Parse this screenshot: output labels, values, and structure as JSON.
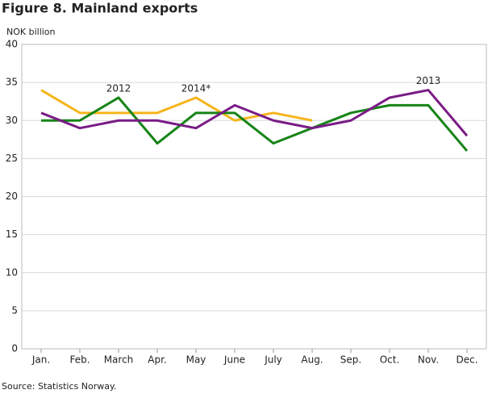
{
  "chart_data": {
    "type": "line",
    "title": "Figure 8. Mainland exports",
    "y_label": "NOK billion",
    "source": "Source: Statistics Norway.",
    "categories": [
      "Jan.",
      "Feb.",
      "March",
      "Apr.",
      "May",
      "June",
      "July",
      "Aug.",
      "Sep.",
      "Oct.",
      "Nov.",
      "Dec."
    ],
    "series": [
      {
        "name": "2014*",
        "color": "#f6b51c",
        "values": [
          34,
          31,
          31,
          31,
          33,
          30,
          31,
          30,
          null,
          null,
          null,
          null
        ]
      },
      {
        "name": "2012",
        "color": "#168416",
        "values": [
          30,
          30,
          33,
          27,
          31,
          31,
          27,
          29,
          31,
          32,
          32,
          26
        ]
      },
      {
        "name": "2013",
        "color": "#7a1c86",
        "values": [
          31,
          29,
          30,
          30,
          29,
          32,
          30,
          29,
          30,
          33,
          34,
          28
        ]
      }
    ],
    "ylim": [
      0,
      40
    ],
    "yticks": [
      0,
      5,
      10,
      15,
      20,
      25,
      30,
      35,
      40
    ],
    "grid": true
  }
}
